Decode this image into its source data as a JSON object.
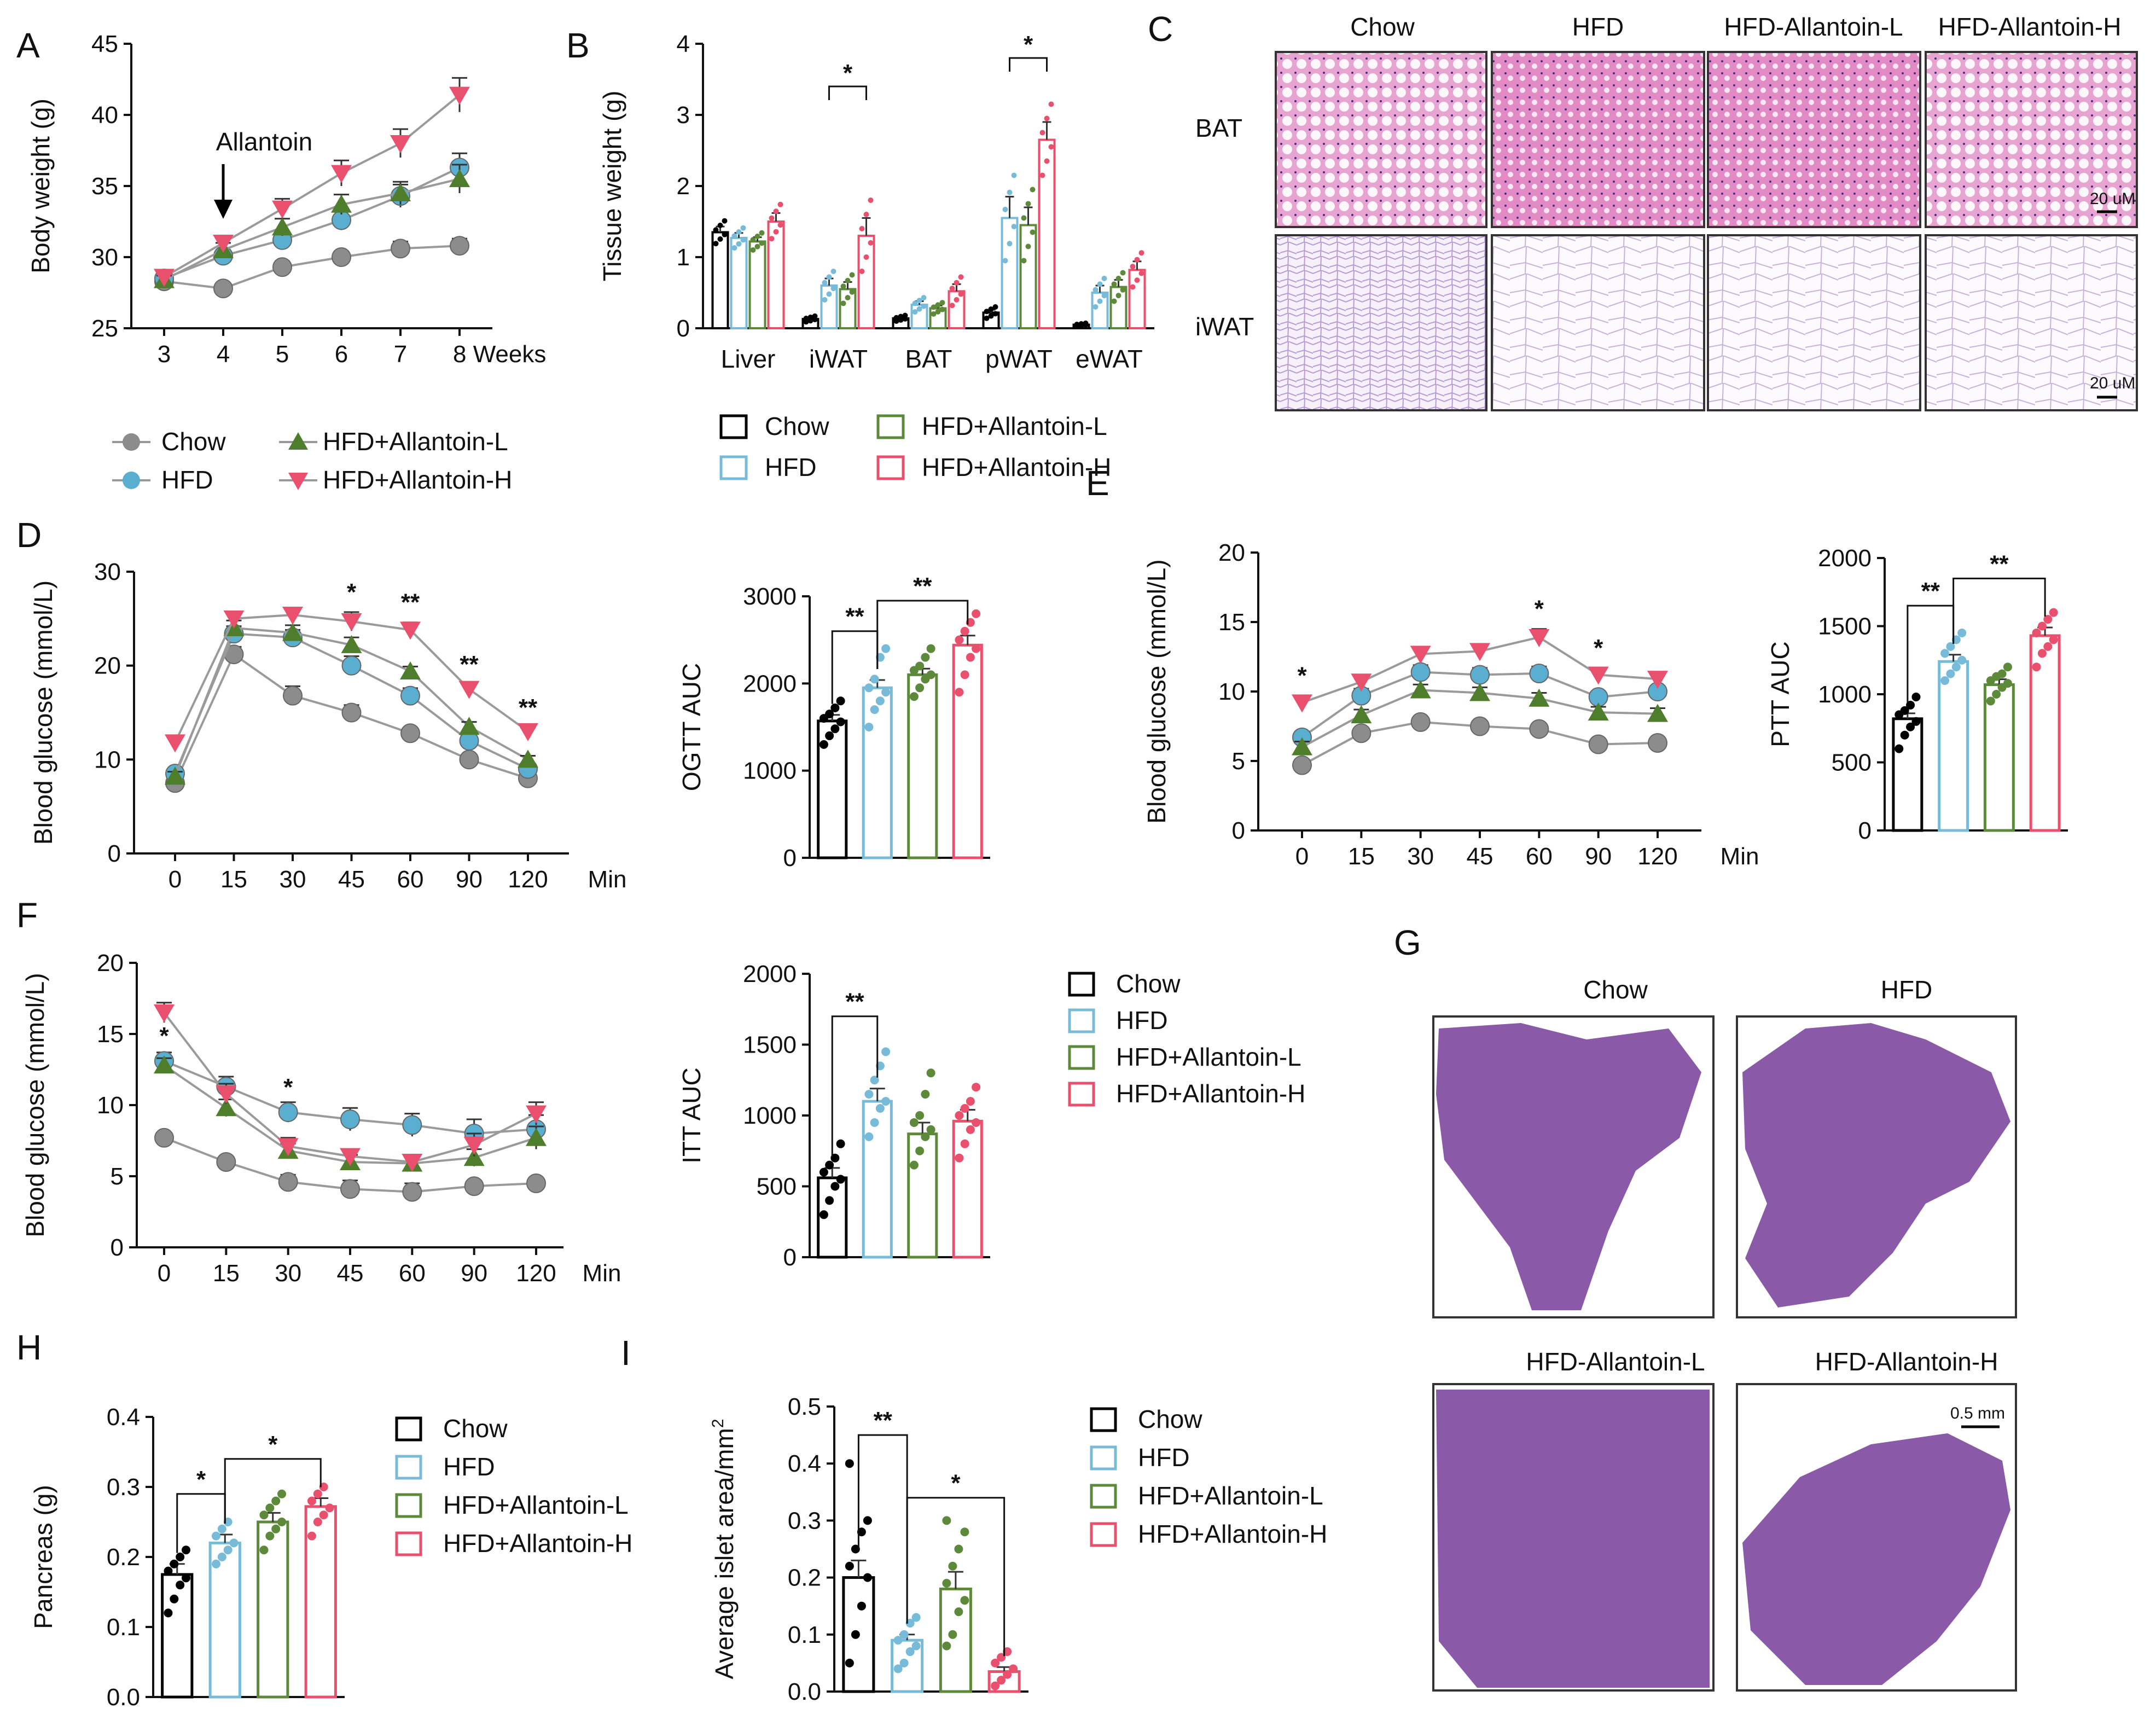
{
  "colors": {
    "chow": "#8c8c8c",
    "hfd": "#5aaed0",
    "low": "#4e7d2b",
    "high": "#e8506e",
    "chow_bar": "#000000",
    "hfd_bar": "#77bbd8",
    "low_bar": "#5c8a3a",
    "high_bar": "#e8506e",
    "bat": "#e9a6d2",
    "iwat": "#fbf8fd",
    "pancreas": "#8a5aa8"
  },
  "groups": [
    "Chow",
    "HFD",
    "HFD+Allantoin-L",
    "HFD+Allantoin-H"
  ],
  "histo_groups": [
    "Chow",
    "HFD",
    "HFD-Allantoin-L",
    "HFD-Allantoin-H"
  ],
  "panels": {
    "A": {
      "letter": "A"
    },
    "B": {
      "letter": "B"
    },
    "C": {
      "letter": "C",
      "rows": [
        "BAT",
        "iWAT"
      ],
      "scale": "20 uM"
    },
    "D": {
      "letter": "D"
    },
    "E": {
      "letter": "E"
    },
    "F": {
      "letter": "F"
    },
    "G": {
      "letter": "G",
      "scale": "0.5 mm"
    },
    "H": {
      "letter": "H"
    },
    "I": {
      "letter": "I"
    }
  },
  "chart_data": [
    {
      "id": "A",
      "type": "line",
      "xlabel": "Weeks",
      "ylabel": "Body weight (g)",
      "x": [
        3,
        4,
        5,
        6,
        7,
        8
      ],
      "xticks": [
        "3",
        "4",
        "5",
        "6",
        "7",
        "8 Weeks"
      ],
      "ylim": [
        25,
        45
      ],
      "yticks": [
        25,
        30,
        35,
        40,
        45
      ],
      "annotation": "Allantoin",
      "annotation_x": 4,
      "series": [
        {
          "name": "Chow",
          "values": [
            28.3,
            27.8,
            29.3,
            30.0,
            30.6,
            30.8
          ],
          "err": [
            0.3,
            0.3,
            0.4,
            0.4,
            0.5,
            0.5
          ]
        },
        {
          "name": "HFD",
          "values": [
            28.5,
            30.1,
            31.2,
            32.6,
            34.3,
            36.3
          ],
          "err": [
            0.3,
            0.4,
            0.6,
            0.7,
            0.8,
            1.0
          ]
        },
        {
          "name": "HFD+Allantoin-L",
          "values": [
            28.4,
            30.5,
            32.1,
            33.7,
            34.5,
            35.5
          ],
          "err": [
            0.3,
            0.5,
            0.6,
            0.7,
            0.8,
            1.0
          ]
        },
        {
          "name": "HFD+Allantoin-H",
          "values": [
            28.6,
            31.0,
            33.4,
            35.9,
            38.0,
            41.4
          ],
          "err": [
            0.3,
            0.5,
            0.7,
            0.9,
            1.0,
            1.2
          ]
        }
      ]
    },
    {
      "id": "B",
      "type": "bar",
      "ylabel": "Tissue weight (g)",
      "categories": [
        "Liver",
        "iWAT",
        "BAT",
        "pWAT",
        "eWAT"
      ],
      "ylim": [
        0,
        4
      ],
      "yticks": [
        0,
        1,
        2,
        3,
        4
      ],
      "series": [
        {
          "name": "Chow",
          "values": [
            1.35,
            0.13,
            0.14,
            0.22,
            0.05
          ],
          "err": [
            0.08,
            0.02,
            0.02,
            0.04,
            0.01
          ]
        },
        {
          "name": "HFD",
          "values": [
            1.27,
            0.6,
            0.33,
            1.55,
            0.5
          ],
          "err": [
            0.07,
            0.1,
            0.05,
            0.3,
            0.1
          ]
        },
        {
          "name": "HFD+Allantoin-L",
          "values": [
            1.22,
            0.55,
            0.28,
            1.45,
            0.58
          ],
          "err": [
            0.06,
            0.1,
            0.04,
            0.25,
            0.1
          ]
        },
        {
          "name": "HFD+Allantoin-H",
          "values": [
            1.5,
            1.3,
            0.52,
            2.65,
            0.82
          ],
          "err": [
            0.12,
            0.25,
            0.1,
            0.25,
            0.12
          ]
        }
      ],
      "sig": [
        {
          "category": "iWAT",
          "from": 1,
          "to": 3,
          "label": "*",
          "y": 3.4
        },
        {
          "category": "pWAT",
          "from": 1,
          "to": 3,
          "label": "*",
          "y": 3.8
        }
      ]
    },
    {
      "id": "D",
      "type": "line",
      "xlabel": "Min",
      "ylabel": "Blood glucose (mmol/L)",
      "x": [
        0,
        15,
        30,
        45,
        60,
        90,
        120
      ],
      "ylim": [
        0,
        30
      ],
      "yticks": [
        0,
        10,
        20,
        30
      ],
      "series": [
        {
          "name": "Chow",
          "values": [
            7.5,
            21.2,
            16.8,
            15.0,
            12.8,
            10.0,
            8.0
          ],
          "err": [
            0.5,
            0.8,
            1.0,
            0.8,
            0.5,
            0.4,
            0.3
          ]
        },
        {
          "name": "HFD",
          "values": [
            8.5,
            23.4,
            23.0,
            20.0,
            16.8,
            12.0,
            9.0
          ],
          "err": [
            0.5,
            0.8,
            0.8,
            1.0,
            0.8,
            0.5,
            0.4
          ]
        },
        {
          "name": "HFD+Allantoin-L",
          "values": [
            8.2,
            24.0,
            23.5,
            22.2,
            19.4,
            13.5,
            10.0
          ],
          "err": [
            0.5,
            0.8,
            0.8,
            0.8,
            0.5,
            0.5,
            0.4
          ]
        },
        {
          "name": "HFD+Allantoin-H",
          "values": [
            11.8,
            25.0,
            25.4,
            24.7,
            23.8,
            17.5,
            13.0
          ],
          "err": [
            0.5,
            0.6,
            0.6,
            1.0,
            0.8,
            0.5,
            0.4
          ]
        }
      ],
      "stars": [
        {
          "x": 45,
          "label": "*"
        },
        {
          "x": 60,
          "label": "**"
        },
        {
          "x": 90,
          "label": "**"
        },
        {
          "x": 120,
          "label": "**"
        }
      ]
    },
    {
      "id": "D_auc",
      "type": "bar",
      "ylabel": "OGTT AUC",
      "categories": [
        "Chow",
        "HFD",
        "HFD+Allantoin-L",
        "HFD+Allantoin-H"
      ],
      "ylim": [
        0,
        3000
      ],
      "yticks": [
        0,
        1000,
        2000,
        3000
      ],
      "values": [
        1570,
        1950,
        2100,
        2440
      ],
      "err": [
        70,
        90,
        70,
        110
      ],
      "points": [
        [
          1300,
          1400,
          1480,
          1560,
          1600,
          1650,
          1720,
          1800
        ],
        [
          1500,
          1700,
          1800,
          1900,
          1950,
          2050,
          2300,
          2400
        ],
        [
          1850,
          1950,
          2050,
          2100,
          2150,
          2200,
          2300,
          2400
        ],
        [
          1900,
          2100,
          2300,
          2400,
          2500,
          2600,
          2700,
          2800
        ]
      ],
      "sig": [
        {
          "from": 0,
          "to": 1,
          "label": "**",
          "y": 2600
        },
        {
          "from": 1,
          "to": 3,
          "label": "**",
          "y": 2950
        }
      ]
    },
    {
      "id": "E",
      "type": "line",
      "xlabel": "Min",
      "ylabel": "Blood glucose (mmol/L)",
      "x": [
        0,
        15,
        30,
        45,
        60,
        90,
        120
      ],
      "ylim": [
        0,
        20
      ],
      "yticks": [
        0,
        5,
        10,
        15,
        20
      ],
      "series": [
        {
          "name": "Chow",
          "values": [
            4.7,
            7.0,
            7.8,
            7.5,
            7.3,
            6.2,
            6.3
          ],
          "err": [
            0.3,
            0.3,
            0.3,
            0.3,
            0.3,
            0.3,
            0.3
          ]
        },
        {
          "name": "HFD",
          "values": [
            6.7,
            9.7,
            11.4,
            11.2,
            11.3,
            9.6,
            10.0
          ],
          "err": [
            0.4,
            0.5,
            0.5,
            0.5,
            0.5,
            0.4,
            0.4
          ]
        },
        {
          "name": "HFD+Allantoin-L",
          "values": [
            6.0,
            8.3,
            10.1,
            9.9,
            9.5,
            8.5,
            8.4
          ],
          "err": [
            0.4,
            0.4,
            0.4,
            0.4,
            0.4,
            0.4,
            0.4
          ]
        },
        {
          "name": "HFD+Allantoin-H",
          "values": [
            9.2,
            10.7,
            12.7,
            12.9,
            13.9,
            11.2,
            10.9
          ],
          "err": [
            0.5,
            0.5,
            0.5,
            0.5,
            0.6,
            0.5,
            0.4
          ]
        }
      ],
      "stars": [
        {
          "x": 0,
          "label": "*"
        },
        {
          "x": 60,
          "label": "*"
        },
        {
          "x": 90,
          "label": "*"
        }
      ]
    },
    {
      "id": "E_auc",
      "type": "bar",
      "ylabel": "PTT AUC",
      "categories": [
        "Chow",
        "HFD",
        "HFD+Allantoin-L",
        "HFD+Allantoin-H"
      ],
      "ylim": [
        0,
        2000
      ],
      "yticks": [
        0,
        500,
        1000,
        1500,
        2000
      ],
      "values": [
        820,
        1240,
        1070,
        1430
      ],
      "err": [
        40,
        50,
        40,
        60
      ],
      "points": [
        [
          600,
          700,
          760,
          800,
          850,
          880,
          920,
          980
        ],
        [
          1100,
          1150,
          1200,
          1250,
          1300,
          1350,
          1400,
          1450
        ],
        [
          950,
          1000,
          1050,
          1080,
          1100,
          1130,
          1150,
          1200
        ],
        [
          1200,
          1300,
          1350,
          1400,
          1450,
          1500,
          1550,
          1600
        ]
      ],
      "sig": [
        {
          "from": 0,
          "to": 1,
          "label": "**",
          "y": 1650
        },
        {
          "from": 1,
          "to": 3,
          "label": "**",
          "y": 1850
        }
      ]
    },
    {
      "id": "F",
      "type": "line",
      "xlabel": "Min",
      "ylabel": "Blood glucose (mmol/L)",
      "x": [
        0,
        15,
        30,
        45,
        60,
        90,
        120
      ],
      "ylim": [
        0,
        20
      ],
      "yticks": [
        0,
        5,
        10,
        15,
        20
      ],
      "series": [
        {
          "name": "Chow",
          "values": [
            7.7,
            6.0,
            4.6,
            4.1,
            3.9,
            4.3,
            4.5
          ],
          "err": [
            0.3,
            0.3,
            0.5,
            0.6,
            0.6,
            0.3,
            0.3
          ]
        },
        {
          "name": "HFD",
          "values": [
            13.1,
            11.3,
            9.5,
            9.0,
            8.6,
            8.0,
            8.3
          ],
          "err": [
            0.6,
            0.7,
            0.7,
            0.8,
            0.8,
            1.0,
            1.0
          ]
        },
        {
          "name": "HFD+Allantoin-L",
          "values": [
            12.8,
            9.8,
            6.8,
            6.0,
            5.9,
            6.3,
            7.7
          ],
          "err": [
            0.5,
            0.6,
            0.5,
            0.5,
            0.5,
            0.6,
            0.8
          ]
        },
        {
          "name": "HFD+Allantoin-H",
          "values": [
            16.5,
            10.8,
            7.1,
            6.4,
            6.0,
            7.2,
            9.4
          ],
          "err": [
            0.7,
            0.7,
            0.6,
            0.5,
            0.5,
            0.8,
            0.8
          ]
        }
      ],
      "stars": [
        {
          "x": 0,
          "label": "*",
          "value": 14.3
        },
        {
          "x": 30,
          "label": "*",
          "value": 10.7
        }
      ]
    },
    {
      "id": "F_auc",
      "type": "bar",
      "ylabel": "ITT AUC",
      "categories": [
        "Chow",
        "HFD",
        "HFD+Allantoin-L",
        "HFD+Allantoin-H"
      ],
      "ylim": [
        0,
        2000
      ],
      "yticks": [
        0,
        500,
        1000,
        1500,
        2000
      ],
      "values": [
        560,
        1100,
        870,
        960
      ],
      "err": [
        70,
        90,
        80,
        80
      ],
      "points": [
        [
          300,
          400,
          500,
          550,
          600,
          650,
          700,
          800
        ],
        [
          850,
          950,
          1050,
          1100,
          1150,
          1250,
          1350,
          1450
        ],
        [
          650,
          750,
          850,
          900,
          950,
          1000,
          1150,
          1300
        ],
        [
          700,
          800,
          900,
          950,
          1000,
          1050,
          1100,
          1200
        ]
      ],
      "sig": [
        {
          "from": 0,
          "to": 1,
          "label": "**",
          "y": 1700
        }
      ]
    },
    {
      "id": "H",
      "type": "bar",
      "ylabel": "Pancreas (g)",
      "categories": [
        "Chow",
        "HFD",
        "HFD+Allantoin-L",
        "HFD+Allantoin-H"
      ],
      "ylim": [
        0,
        0.4
      ],
      "yticks": [
        0.0,
        0.1,
        0.2,
        0.3,
        0.4
      ],
      "ytick_labels": [
        "0.0",
        "0.1",
        "0.2",
        "0.3",
        "0.4"
      ],
      "values": [
        0.175,
        0.22,
        0.25,
        0.272
      ],
      "err": [
        0.015,
        0.012,
        0.013,
        0.012
      ],
      "points": [
        [
          0.12,
          0.14,
          0.16,
          0.17,
          0.18,
          0.19,
          0.2,
          0.21
        ],
        [
          0.19,
          0.2,
          0.21,
          0.22,
          0.23,
          0.24,
          0.25
        ],
        [
          0.21,
          0.23,
          0.24,
          0.25,
          0.26,
          0.27,
          0.28,
          0.29
        ],
        [
          0.23,
          0.25,
          0.26,
          0.27,
          0.28,
          0.29,
          0.3
        ]
      ],
      "sig": [
        {
          "from": 0,
          "to": 1,
          "label": "*",
          "y": 0.29
        },
        {
          "from": 1,
          "to": 3,
          "label": "*",
          "y": 0.34
        }
      ]
    },
    {
      "id": "I",
      "type": "bar",
      "ylabel": "Average islet area/mm",
      "ylabel_sup": "2",
      "categories": [
        "Chow",
        "HFD",
        "HFD+Allantoin-L",
        "HFD+Allantoin-H"
      ],
      "ylim": [
        0,
        0.5
      ],
      "yticks": [
        0.0,
        0.1,
        0.2,
        0.3,
        0.4,
        0.5
      ],
      "ytick_labels": [
        "0.0",
        "0.1",
        "0.2",
        "0.3",
        "0.4",
        "0.5"
      ],
      "values": [
        0.2,
        0.09,
        0.18,
        0.035
      ],
      "err": [
        0.03,
        0.01,
        0.03,
        0.008
      ],
      "points": [
        [
          0.05,
          0.1,
          0.15,
          0.2,
          0.22,
          0.25,
          0.28,
          0.3,
          0.4
        ],
        [
          0.04,
          0.05,
          0.07,
          0.08,
          0.09,
          0.1,
          0.12,
          0.13
        ],
        [
          0.08,
          0.1,
          0.14,
          0.16,
          0.19,
          0.22,
          0.25,
          0.28,
          0.3
        ],
        [
          0.01,
          0.02,
          0.03,
          0.04,
          0.05,
          0.06,
          0.07
        ]
      ],
      "sig": [
        {
          "from": 0,
          "to": 1,
          "label": "**",
          "y": 0.45
        },
        {
          "from": 1,
          "to": 3,
          "label": "*",
          "y": 0.34
        }
      ]
    }
  ]
}
